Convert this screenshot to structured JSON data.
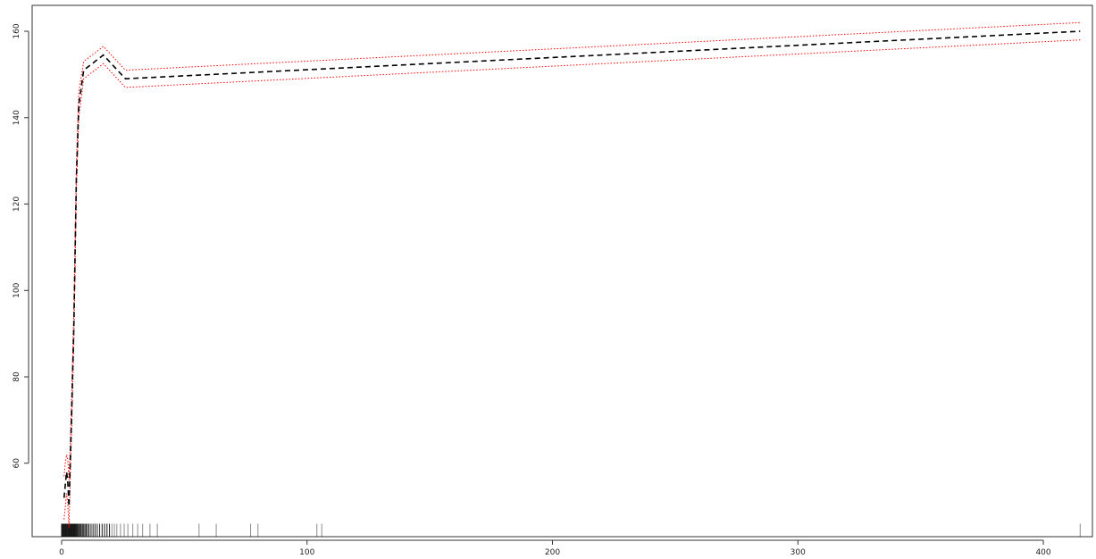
{
  "chart_data": {
    "type": "line",
    "title": "",
    "xlabel": "",
    "ylabel": "",
    "xlim": [
      -12,
      420
    ],
    "ylim": [
      43,
      166
    ],
    "grid": false,
    "legend": "none",
    "x_ticks": [
      "0",
      "100",
      "200",
      "300",
      "400"
    ],
    "y_ticks": [
      "60",
      "80",
      "100",
      "120",
      "140",
      "160"
    ],
    "series": [
      {
        "role": "fit",
        "color": "#000000",
        "style": "dashed",
        "x": [
          1,
          1.5,
          2,
          2.5,
          3,
          3.5,
          4,
          5,
          6,
          7,
          9,
          17,
          26,
          415
        ],
        "y": [
          52,
          55,
          58,
          56,
          50,
          60,
          70,
          92,
          126,
          143,
          151,
          154.5,
          149,
          160
        ]
      },
      {
        "role": "upper-band",
        "color": "#ff0000",
        "style": "dotted",
        "x": [
          1,
          1.5,
          2,
          2.5,
          3,
          3.5,
          4,
          5,
          6,
          7,
          9,
          17,
          26,
          415
        ],
        "y": [
          57,
          60,
          62,
          61,
          56,
          64,
          74,
          96,
          129,
          146,
          153,
          156.5,
          151,
          162
        ]
      },
      {
        "role": "lower-band",
        "color": "#ff0000",
        "style": "dotted",
        "x": [
          1,
          1.5,
          2,
          2.5,
          3,
          3.5,
          4,
          5,
          6,
          7,
          9,
          17,
          26,
          415
        ],
        "y": [
          47,
          50,
          53,
          51,
          45,
          56,
          66,
          88,
          123,
          140,
          149,
          152.5,
          147,
          158
        ]
      }
    ],
    "rug": [
      0,
      0.3,
      0.6,
      0.9,
      1.2,
      1.5,
      1.8,
      2.1,
      2.4,
      2.7,
      3,
      3.3,
      3.6,
      3.9,
      4.2,
      4.5,
      4.8,
      5.1,
      5.4,
      5.7,
      6,
      6.4,
      6.8,
      7.2,
      7.6,
      8,
      8.5,
      9,
      9.5,
      10,
      10.6,
      11.2,
      12,
      12.8,
      13.6,
      14.5,
      15.5,
      16.5,
      17.5,
      18.5,
      19.5,
      20.5,
      21.5,
      22.5,
      24,
      25.5,
      27,
      29,
      31,
      33,
      36,
      39,
      56,
      63,
      77,
      80,
      104,
      106,
      415
    ]
  }
}
